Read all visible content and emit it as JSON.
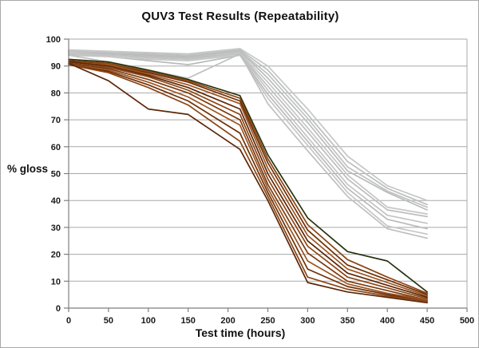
{
  "window": {
    "background": "#ffffff",
    "border_color": "#a9a9a9"
  },
  "chart_data": {
    "type": "line",
    "title": "QUV3 Test Results (Repeatability)",
    "xlabel": "Test time (hours)",
    "ylabel": "% gloss",
    "xlim": [
      0,
      500
    ],
    "ylim": [
      0,
      100
    ],
    "x_ticks": [
      0,
      50,
      100,
      150,
      200,
      250,
      300,
      350,
      400,
      450,
      500
    ],
    "y_ticks": [
      0,
      10,
      20,
      30,
      40,
      50,
      60,
      70,
      80,
      90,
      100
    ],
    "grid": "horizontal-only",
    "legend": "none",
    "colors": {
      "grid": "#a8a8a8",
      "axis": "#7f7f7f",
      "gray_group": "#c3c3c3",
      "brown_group": "#7a3a10"
    },
    "x": [
      0,
      50,
      100,
      150,
      215,
      250,
      300,
      350,
      400,
      450
    ],
    "series": [
      {
        "name": "gray-1",
        "group": "gray",
        "color": "#c6c6c6",
        "values": [
          96,
          95.5,
          95,
          94.5,
          96.5,
          90,
          74,
          56.5,
          45.5,
          40
        ]
      },
      {
        "name": "gray-2",
        "group": "gray",
        "color": "#bcbfbf",
        "values": [
          95.5,
          95,
          94.5,
          94,
          96,
          88.5,
          72,
          54.5,
          44.5,
          38.5
        ]
      },
      {
        "name": "gray-3",
        "group": "gray",
        "color": "#c2c2c2",
        "values": [
          95.5,
          95,
          94,
          93.5,
          95.5,
          87,
          70.5,
          52.5,
          43.5,
          37.5
        ]
      },
      {
        "name": "gray-4",
        "group": "gray",
        "color": "#b9bcbc",
        "values": [
          95,
          94.5,
          94,
          93.5,
          95.5,
          85.5,
          69,
          51,
          43,
          36.5
        ]
      },
      {
        "name": "gray-5",
        "group": "gray",
        "color": "#c6c6c6",
        "values": [
          95,
          94,
          93.5,
          93,
          95,
          84,
          67,
          49.5,
          37.5,
          35
        ]
      },
      {
        "name": "gray-6",
        "group": "gray",
        "color": "#bdbdbd",
        "values": [
          94.5,
          94,
          93.5,
          93,
          94.5,
          82.5,
          65.5,
          48,
          36.5,
          34
        ]
      },
      {
        "name": "gray-7",
        "group": "gray",
        "color": "#c3c3c3",
        "values": [
          94.5,
          94,
          93,
          92.5,
          94.5,
          81,
          63.5,
          46,
          34.5,
          31.5
        ]
      },
      {
        "name": "gray-8",
        "group": "gray",
        "color": "#bababa",
        "values": [
          94,
          93.5,
          92,
          90.5,
          94,
          79.5,
          62,
          44.5,
          33,
          29.5
        ]
      },
      {
        "name": "gray-9",
        "group": "gray",
        "color": "#c6c6c6",
        "values": [
          94,
          93.5,
          92.5,
          92,
          94,
          78,
          60.5,
          43,
          30.5,
          27.5
        ]
      },
      {
        "name": "gray-10",
        "group": "gray",
        "color": "#bfbfbf",
        "values": [
          94,
          91.5,
          88.5,
          85.5,
          94.5,
          76,
          58.5,
          41.5,
          29.5,
          26
        ]
      },
      {
        "name": "brown-1",
        "group": "brown",
        "color": "#26330e",
        "values": [
          92.5,
          91.5,
          88.5,
          85,
          79,
          57,
          33.5,
          21,
          17.5,
          6
        ]
      },
      {
        "name": "brown-2",
        "group": "brown",
        "color": "#8b4513",
        "values": [
          92,
          91,
          88,
          84.5,
          78,
          55.5,
          31,
          18,
          11.5,
          5.5
        ]
      },
      {
        "name": "brown-3",
        "group": "brown",
        "color": "#6e3008",
        "values": [
          92,
          90.5,
          87.5,
          84,
          77,
          54,
          29,
          16,
          10.5,
          5
        ]
      },
      {
        "name": "brown-4",
        "group": "brown",
        "color": "#9b5420",
        "values": [
          91.5,
          90.5,
          87,
          83,
          76,
          52,
          27,
          14.5,
          9.5,
          4.5
        ]
      },
      {
        "name": "brown-5",
        "group": "brown",
        "color": "#5d2708",
        "values": [
          91.5,
          90,
          86.5,
          82,
          74,
          50,
          25,
          13,
          8.5,
          4
        ]
      },
      {
        "name": "brown-6",
        "group": "brown",
        "color": "#8b4513",
        "values": [
          91,
          89.5,
          86,
          81,
          72,
          48,
          23,
          11.5,
          7.5,
          3.5
        ]
      },
      {
        "name": "brown-7",
        "group": "brown",
        "color": "#7a3a10",
        "values": [
          91,
          89,
          85,
          80,
          70,
          46,
          20.5,
          10,
          6.5,
          3
        ]
      },
      {
        "name": "brown-8",
        "group": "brown",
        "color": "#9b5420",
        "values": [
          90.5,
          88.5,
          84,
          78.5,
          68,
          44.5,
          17.5,
          9,
          5.5,
          3
        ]
      },
      {
        "name": "brown-9",
        "group": "brown",
        "color": "#6e3008",
        "values": [
          90.5,
          88,
          83,
          77,
          65,
          43,
          14.5,
          8,
          5,
          2.5
        ]
      },
      {
        "name": "brown-10",
        "group": "brown",
        "color": "#8b4513",
        "values": [
          90.5,
          87.5,
          82,
          75.5,
          62,
          41.5,
          11.5,
          7,
          4.5,
          2.5
        ]
      },
      {
        "name": "brown-11",
        "group": "brown",
        "color": "#5d2708",
        "values": [
          91,
          84.5,
          74,
          72,
          59,
          40,
          9.5,
          6,
          4,
          2
        ]
      }
    ]
  }
}
